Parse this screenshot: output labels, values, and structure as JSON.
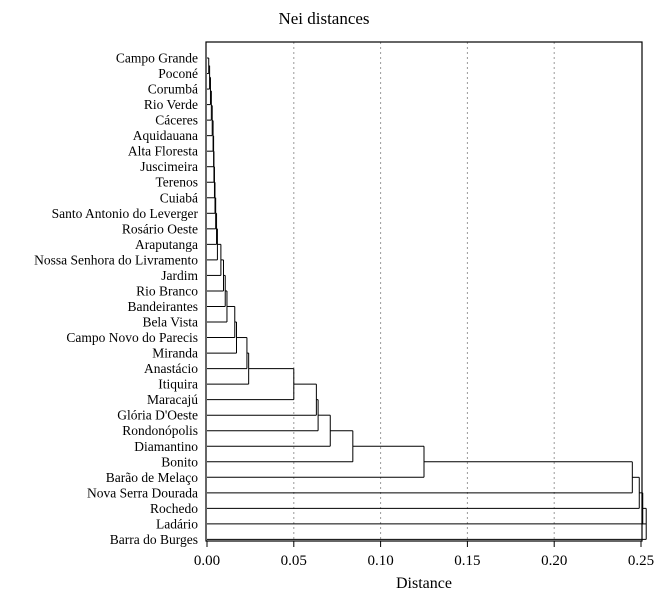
{
  "chart_data": {
    "type": "dendrogram",
    "title": "Nei distances",
    "xlabel": "Distance",
    "xlim": [
      0,
      0.25
    ],
    "xticks": [
      "0.00",
      "0.05",
      "0.10",
      "0.15",
      "0.20",
      "0.25"
    ],
    "grid": "vertical dashed",
    "leaves": [
      "Campo Grande",
      "Poconé",
      "Corumbá",
      "Rio Verde",
      "Cáceres",
      "Aquidauana",
      "Alta Floresta",
      "Juscimeira",
      "Terenos",
      "Cuiabá",
      "Santo Antonio do Leverger",
      "Rosário Oeste",
      "Araputanga",
      "Nossa Senhora do Livramento",
      "Jardim",
      "Rio Branco",
      "Bandeirantes",
      "Bela Vista",
      "Campo Novo do Parecis",
      "Miranda",
      "Anastácio",
      "Itiquira",
      "Maracajú",
      "Glória D'Oeste",
      "Rondonópolis",
      "Diamantino",
      "Bonito",
      "Barão de Melaço",
      "Nova Serra Dourada",
      "Rochedo",
      "Ladário",
      "Barra do Burges"
    ],
    "merge_heights": [
      0.001,
      0.0015,
      0.002,
      0.0025,
      0.003,
      0.0035,
      0.0038,
      0.004,
      0.0043,
      0.0046,
      0.005,
      0.0055,
      0.006,
      0.008,
      0.0095,
      0.0105,
      0.0115,
      0.016,
      0.017,
      0.023,
      0.024,
      0.05,
      0.063,
      0.064,
      0.071,
      0.084,
      0.125,
      0.245,
      0.249,
      0.251,
      0.253
    ]
  }
}
